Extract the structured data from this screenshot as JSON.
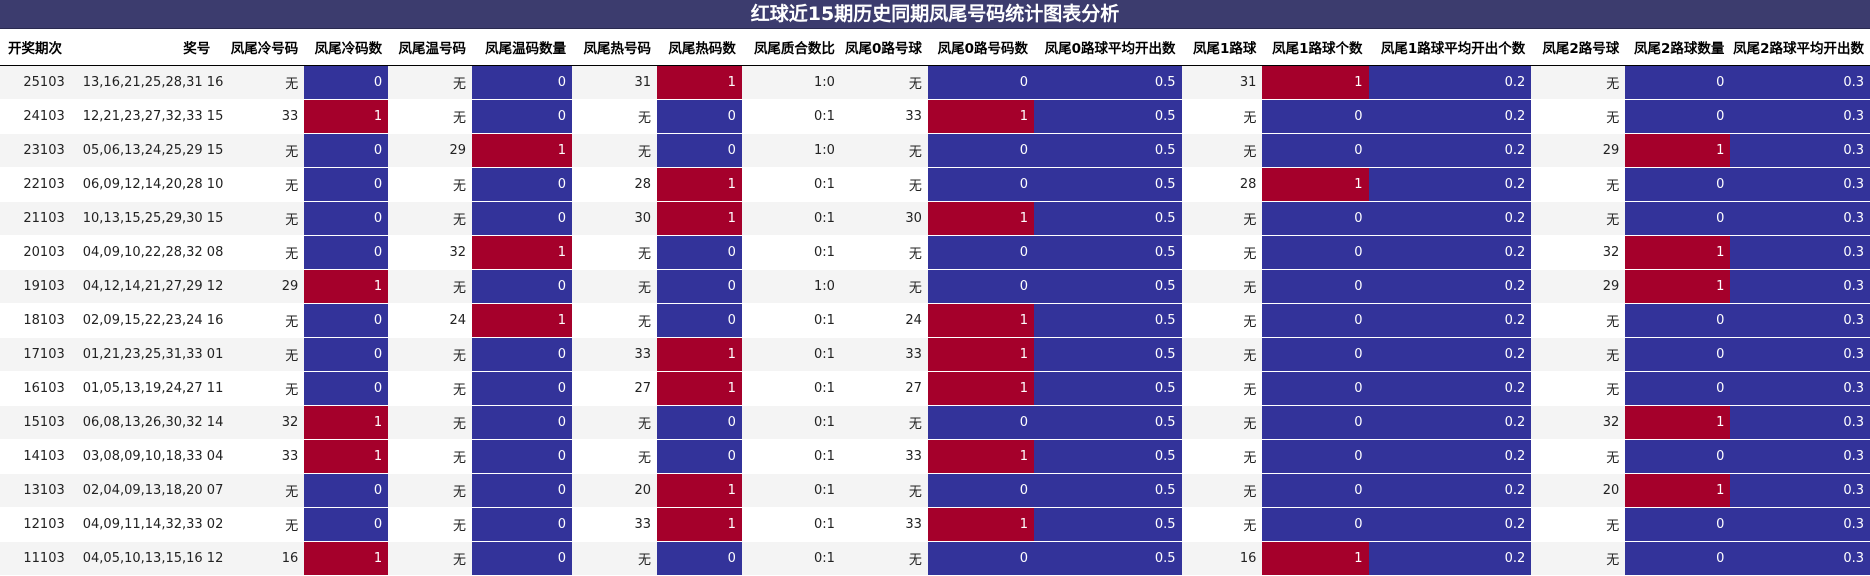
{
  "title": "红球近15期历史同期凤尾号码统计图表分析",
  "headers": [
    "开奖期次",
    "奖号",
    "凤尾冷号码",
    "凤尾冷码数",
    "凤尾温号码",
    "凤尾温码数量",
    "凤尾热号码",
    "凤尾热码数",
    "凤尾质合数比",
    "凤尾0路号球",
    "凤尾0路号码数",
    "凤尾0路球平均开出数",
    "凤尾1路球",
    "凤尾1路球个数",
    "凤尾1路球平均开出个数",
    "凤尾2路号球",
    "凤尾2路球数量",
    "凤尾2路球平均开出数"
  ],
  "colors": {
    "title_bg": "#3c3c6e",
    "blue": "#33339a",
    "red": "#a5002b"
  },
  "rows": [
    {
      "period": "25103",
      "numbers": "13,16,21,25,28,31 16",
      "cold": "无",
      "cold_n": "0",
      "warm": "无",
      "warm_n": "0",
      "hot": "31",
      "hot_n": "1",
      "ratio": "1:0",
      "r0": "无",
      "r0_n": "0",
      "r0_avg": "0.5",
      "r1": "31",
      "r1_n": "1",
      "r1_avg": "0.2",
      "r2": "无",
      "r2_n": "0",
      "r2_avg": "0.3"
    },
    {
      "period": "24103",
      "numbers": "12,21,23,27,32,33 15",
      "cold": "33",
      "cold_n": "1",
      "warm": "无",
      "warm_n": "0",
      "hot": "无",
      "hot_n": "0",
      "ratio": "0:1",
      "r0": "33",
      "r0_n": "1",
      "r0_avg": "0.5",
      "r1": "无",
      "r1_n": "0",
      "r1_avg": "0.2",
      "r2": "无",
      "r2_n": "0",
      "r2_avg": "0.3"
    },
    {
      "period": "23103",
      "numbers": "05,06,13,24,25,29 15",
      "cold": "无",
      "cold_n": "0",
      "warm": "29",
      "warm_n": "1",
      "hot": "无",
      "hot_n": "0",
      "ratio": "1:0",
      "r0": "无",
      "r0_n": "0",
      "r0_avg": "0.5",
      "r1": "无",
      "r1_n": "0",
      "r1_avg": "0.2",
      "r2": "29",
      "r2_n": "1",
      "r2_avg": "0.3"
    },
    {
      "period": "22103",
      "numbers": "06,09,12,14,20,28 10",
      "cold": "无",
      "cold_n": "0",
      "warm": "无",
      "warm_n": "0",
      "hot": "28",
      "hot_n": "1",
      "ratio": "0:1",
      "r0": "无",
      "r0_n": "0",
      "r0_avg": "0.5",
      "r1": "28",
      "r1_n": "1",
      "r1_avg": "0.2",
      "r2": "无",
      "r2_n": "0",
      "r2_avg": "0.3"
    },
    {
      "period": "21103",
      "numbers": "10,13,15,25,29,30 15",
      "cold": "无",
      "cold_n": "0",
      "warm": "无",
      "warm_n": "0",
      "hot": "30",
      "hot_n": "1",
      "ratio": "0:1",
      "r0": "30",
      "r0_n": "1",
      "r0_avg": "0.5",
      "r1": "无",
      "r1_n": "0",
      "r1_avg": "0.2",
      "r2": "无",
      "r2_n": "0",
      "r2_avg": "0.3"
    },
    {
      "period": "20103",
      "numbers": "04,09,10,22,28,32 08",
      "cold": "无",
      "cold_n": "0",
      "warm": "32",
      "warm_n": "1",
      "hot": "无",
      "hot_n": "0",
      "ratio": "0:1",
      "r0": "无",
      "r0_n": "0",
      "r0_avg": "0.5",
      "r1": "无",
      "r1_n": "0",
      "r1_avg": "0.2",
      "r2": "32",
      "r2_n": "1",
      "r2_avg": "0.3"
    },
    {
      "period": "19103",
      "numbers": "04,12,14,21,27,29 12",
      "cold": "29",
      "cold_n": "1",
      "warm": "无",
      "warm_n": "0",
      "hot": "无",
      "hot_n": "0",
      "ratio": "1:0",
      "r0": "无",
      "r0_n": "0",
      "r0_avg": "0.5",
      "r1": "无",
      "r1_n": "0",
      "r1_avg": "0.2",
      "r2": "29",
      "r2_n": "1",
      "r2_avg": "0.3"
    },
    {
      "period": "18103",
      "numbers": "02,09,15,22,23,24 16",
      "cold": "无",
      "cold_n": "0",
      "warm": "24",
      "warm_n": "1",
      "hot": "无",
      "hot_n": "0",
      "ratio": "0:1",
      "r0": "24",
      "r0_n": "1",
      "r0_avg": "0.5",
      "r1": "无",
      "r1_n": "0",
      "r1_avg": "0.2",
      "r2": "无",
      "r2_n": "0",
      "r2_avg": "0.3"
    },
    {
      "period": "17103",
      "numbers": "01,21,23,25,31,33 01",
      "cold": "无",
      "cold_n": "0",
      "warm": "无",
      "warm_n": "0",
      "hot": "33",
      "hot_n": "1",
      "ratio": "0:1",
      "r0": "33",
      "r0_n": "1",
      "r0_avg": "0.5",
      "r1": "无",
      "r1_n": "0",
      "r1_avg": "0.2",
      "r2": "无",
      "r2_n": "0",
      "r2_avg": "0.3"
    },
    {
      "period": "16103",
      "numbers": "01,05,13,19,24,27 11",
      "cold": "无",
      "cold_n": "0",
      "warm": "无",
      "warm_n": "0",
      "hot": "27",
      "hot_n": "1",
      "ratio": "0:1",
      "r0": "27",
      "r0_n": "1",
      "r0_avg": "0.5",
      "r1": "无",
      "r1_n": "0",
      "r1_avg": "0.2",
      "r2": "无",
      "r2_n": "0",
      "r2_avg": "0.3"
    },
    {
      "period": "15103",
      "numbers": "06,08,13,26,30,32 14",
      "cold": "32",
      "cold_n": "1",
      "warm": "无",
      "warm_n": "0",
      "hot": "无",
      "hot_n": "0",
      "ratio": "0:1",
      "r0": "无",
      "r0_n": "0",
      "r0_avg": "0.5",
      "r1": "无",
      "r1_n": "0",
      "r1_avg": "0.2",
      "r2": "32",
      "r2_n": "1",
      "r2_avg": "0.3"
    },
    {
      "period": "14103",
      "numbers": "03,08,09,10,18,33 04",
      "cold": "33",
      "cold_n": "1",
      "warm": "无",
      "warm_n": "0",
      "hot": "无",
      "hot_n": "0",
      "ratio": "0:1",
      "r0": "33",
      "r0_n": "1",
      "r0_avg": "0.5",
      "r1": "无",
      "r1_n": "0",
      "r1_avg": "0.2",
      "r2": "无",
      "r2_n": "0",
      "r2_avg": "0.3"
    },
    {
      "period": "13103",
      "numbers": "02,04,09,13,18,20 07",
      "cold": "无",
      "cold_n": "0",
      "warm": "无",
      "warm_n": "0",
      "hot": "20",
      "hot_n": "1",
      "ratio": "0:1",
      "r0": "无",
      "r0_n": "0",
      "r0_avg": "0.5",
      "r1": "无",
      "r1_n": "0",
      "r1_avg": "0.2",
      "r2": "20",
      "r2_n": "1",
      "r2_avg": "0.3"
    },
    {
      "period": "12103",
      "numbers": "04,09,11,14,32,33 02",
      "cold": "无",
      "cold_n": "0",
      "warm": "无",
      "warm_n": "0",
      "hot": "33",
      "hot_n": "1",
      "ratio": "0:1",
      "r0": "33",
      "r0_n": "1",
      "r0_avg": "0.5",
      "r1": "无",
      "r1_n": "0",
      "r1_avg": "0.2",
      "r2": "无",
      "r2_n": "0",
      "r2_avg": "0.3"
    },
    {
      "period": "11103",
      "numbers": "04,05,10,13,15,16 12",
      "cold": "16",
      "cold_n": "1",
      "warm": "无",
      "warm_n": "0",
      "hot": "无",
      "hot_n": "0",
      "ratio": "0:1",
      "r0": "无",
      "r0_n": "0",
      "r0_avg": "0.5",
      "r1": "16",
      "r1_n": "1",
      "r1_avg": "0.2",
      "r2": "无",
      "r2_n": "0",
      "r2_avg": "0.3"
    }
  ]
}
